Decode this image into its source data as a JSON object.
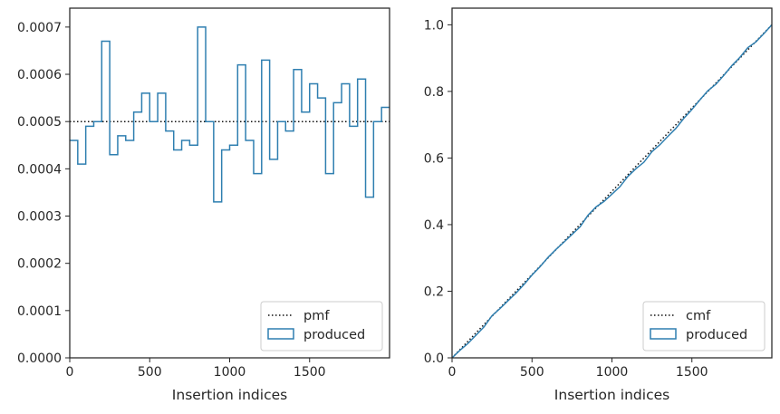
{
  "colors": {
    "series": "#2f7fb0",
    "reference": "#111111",
    "axis": "#262626"
  },
  "chart_data": [
    {
      "type": "step",
      "xlabel": "Insertion indices",
      "ylabel": "",
      "xlim": [
        0,
        2000
      ],
      "ylim": [
        0,
        0.00074
      ],
      "xticks": [
        0,
        500,
        1000,
        1500
      ],
      "xtick_labels": [
        "0",
        "500",
        "1000",
        "1500"
      ],
      "yticks": [
        0,
        0.0001,
        0.0002,
        0.0003,
        0.0004,
        0.0005,
        0.0006,
        0.0007
      ],
      "ytick_labels": [
        "0.0000",
        "0.0001",
        "0.0002",
        "0.0003",
        "0.0004",
        "0.0005",
        "0.0006",
        "0.0007"
      ],
      "legend": {
        "placement": "lower-right",
        "entries": [
          "pmf",
          "produced"
        ]
      },
      "reference": {
        "name": "pmf",
        "value": 0.0005
      },
      "series": [
        {
          "name": "produced",
          "bin_width": 50,
          "values": [
            0.00046,
            0.00041,
            0.00049,
            0.0005,
            0.00067,
            0.00043,
            0.00047,
            0.00046,
            0.00052,
            0.00056,
            0.0005,
            0.00056,
            0.00048,
            0.00044,
            0.00046,
            0.00045,
            0.0007,
            0.0005,
            0.00033,
            0.00044,
            0.00045,
            0.00062,
            0.00046,
            0.00039,
            0.00063,
            0.00042,
            0.0005,
            0.00048,
            0.00061,
            0.00052,
            0.00058,
            0.00055,
            0.00039,
            0.00054,
            0.00058,
            0.00049,
            0.00059,
            0.00034,
            0.0005,
            0.00053
          ]
        }
      ]
    },
    {
      "type": "step",
      "xlabel": "Insertion indices",
      "ylabel": "",
      "xlim": [
        0,
        2000
      ],
      "ylim": [
        0,
        1.05
      ],
      "xticks": [
        0,
        500,
        1000,
        1500
      ],
      "xtick_labels": [
        "0",
        "500",
        "1000",
        "1500"
      ],
      "yticks": [
        0,
        0.2,
        0.4,
        0.6,
        0.8,
        1.0
      ],
      "ytick_labels": [
        "0.0",
        "0.2",
        "0.4",
        "0.6",
        "0.8",
        "1.0"
      ],
      "legend": {
        "placement": "lower-right",
        "entries": [
          "cmf",
          "produced"
        ]
      },
      "reference": {
        "name": "cmf",
        "from": [
          0,
          0
        ],
        "to": [
          2000,
          1
        ]
      },
      "series": [
        {
          "name": "produced",
          "cumulative_of_left": true
        }
      ]
    }
  ]
}
